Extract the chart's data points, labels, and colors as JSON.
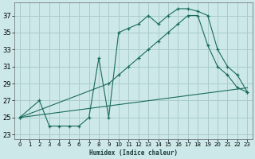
{
  "xlabel": "Humidex (Indice chaleur)",
  "bg_color": "#cce8e8",
  "grid_color": "#aacccc",
  "line_color": "#1a6b5a",
  "xlim": [
    -0.5,
    23.5
  ],
  "ylim": [
    22.5,
    38.5
  ],
  "xticks": [
    0,
    1,
    2,
    3,
    4,
    5,
    6,
    7,
    8,
    9,
    10,
    11,
    12,
    13,
    14,
    15,
    16,
    17,
    18,
    19,
    20,
    21,
    22,
    23
  ],
  "yticks": [
    23,
    25,
    27,
    29,
    31,
    33,
    35,
    37
  ],
  "line1_x": [
    0,
    2,
    3,
    4,
    5,
    6,
    7,
    8,
    9,
    10,
    11,
    12,
    13,
    14,
    15,
    16,
    17,
    18,
    19,
    20,
    21,
    22,
    23
  ],
  "line1_y": [
    25,
    27,
    24,
    24,
    24,
    24,
    25,
    32,
    25,
    35,
    35.5,
    36,
    37,
    36,
    37,
    37.8,
    37.8,
    37.5,
    37,
    33,
    31,
    30,
    28
  ],
  "line2_x": [
    0,
    9,
    10,
    11,
    12,
    13,
    14,
    15,
    16,
    17,
    18,
    19,
    20,
    21,
    22,
    23
  ],
  "line2_y": [
    25,
    29,
    30,
    31,
    32,
    33,
    34,
    35,
    36,
    37,
    37,
    33.5,
    31,
    30,
    28.5,
    28
  ],
  "line3_x": [
    0,
    23
  ],
  "line3_y": [
    25,
    28.5
  ]
}
